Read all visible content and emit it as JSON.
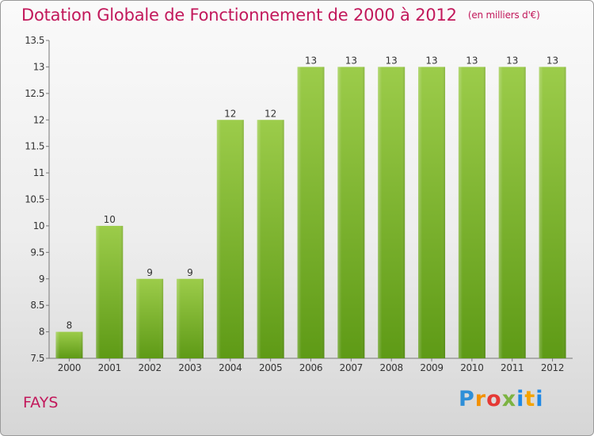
{
  "title": "Dotation Globale de Fonctionnement de 2000 à 2012",
  "unit": "(en milliers d'€)",
  "commune": "FAYS",
  "logo": [
    "P",
    "r",
    "o",
    "x",
    "i",
    "t",
    "i"
  ],
  "colors": {
    "title": "#c2185b",
    "bar_top": "#9ccc4a",
    "bar_bottom": "#5e9a16"
  },
  "chart_data": {
    "type": "bar",
    "title": "Dotation Globale de Fonctionnement de 2000 à 2012",
    "categories": [
      "2000",
      "2001",
      "2002",
      "2003",
      "2004",
      "2005",
      "2006",
      "2007",
      "2008",
      "2009",
      "2010",
      "2011",
      "2012"
    ],
    "values": [
      8,
      10,
      9,
      9,
      12,
      12,
      13,
      13,
      13,
      13,
      13,
      13,
      13
    ],
    "ylim": [
      7.5,
      13.5
    ],
    "yticks": [
      "7.5",
      "8",
      "8.5",
      "9",
      "9.5",
      "10",
      "10.5",
      "11",
      "11.5",
      "12",
      "12.5",
      "13",
      "13.5"
    ],
    "grid": false,
    "legend": "none"
  }
}
